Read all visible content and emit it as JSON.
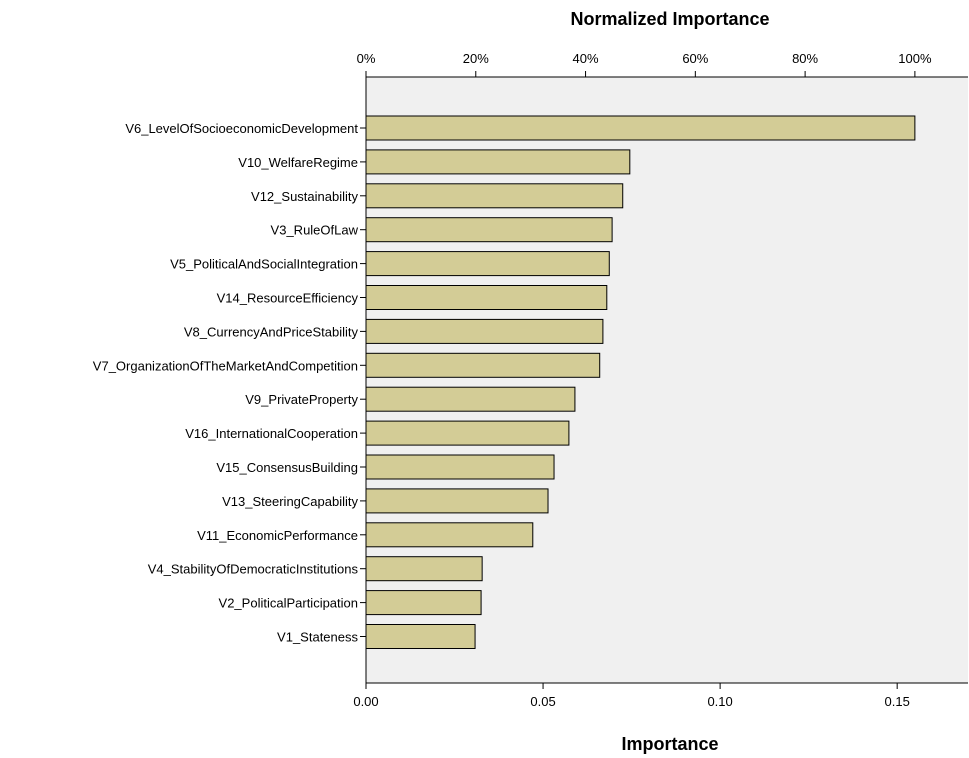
{
  "chart_data": {
    "type": "bar",
    "orientation": "horizontal",
    "categories": [
      "V6_LevelOfSocioeconomicDevelopment",
      "V10_WelfareRegime",
      "V12_Sustainability",
      "V3_RuleOfLaw",
      "V5_PoliticalAndSocialIntegration",
      "V14_ResourceEfficiency",
      "V8_CurrencyAndPriceStability",
      "V7_OrganizationOfTheMarketAndCompetition",
      "V9_PrivateProperty",
      "V16_InternationalCooperation",
      "V15_ConsensusBuilding",
      "V13_SteeringCapability",
      "V11_EconomicPerformance",
      "V4_StabilityOfDemocraticInstitutions",
      "V2_PoliticalParticipation",
      "V1_Stateness"
    ],
    "values": [
      0.155,
      0.0745,
      0.0725,
      0.0695,
      0.0687,
      0.068,
      0.0669,
      0.066,
      0.059,
      0.0573,
      0.0531,
      0.0514,
      0.0471,
      0.0328,
      0.0325,
      0.0308
    ],
    "xlabel": "Importance",
    "xlim": [
      0,
      0.17
    ],
    "xticks": [
      0,
      0.05,
      0.1,
      0.15
    ],
    "xtick_labels": [
      "0.00",
      "0.05",
      "0.10",
      "0.15"
    ],
    "secondary_axis_title": "Normalized Importance",
    "secondary_ticks": [
      0,
      20,
      40,
      60,
      80,
      100
    ],
    "secondary_tick_labels": [
      "0%",
      "20%",
      "40%",
      "60%",
      "80%",
      "100%"
    ],
    "bar_color": "#d3cc96",
    "plot_background": "#f0f0f0",
    "grid": false,
    "legend": "none"
  }
}
